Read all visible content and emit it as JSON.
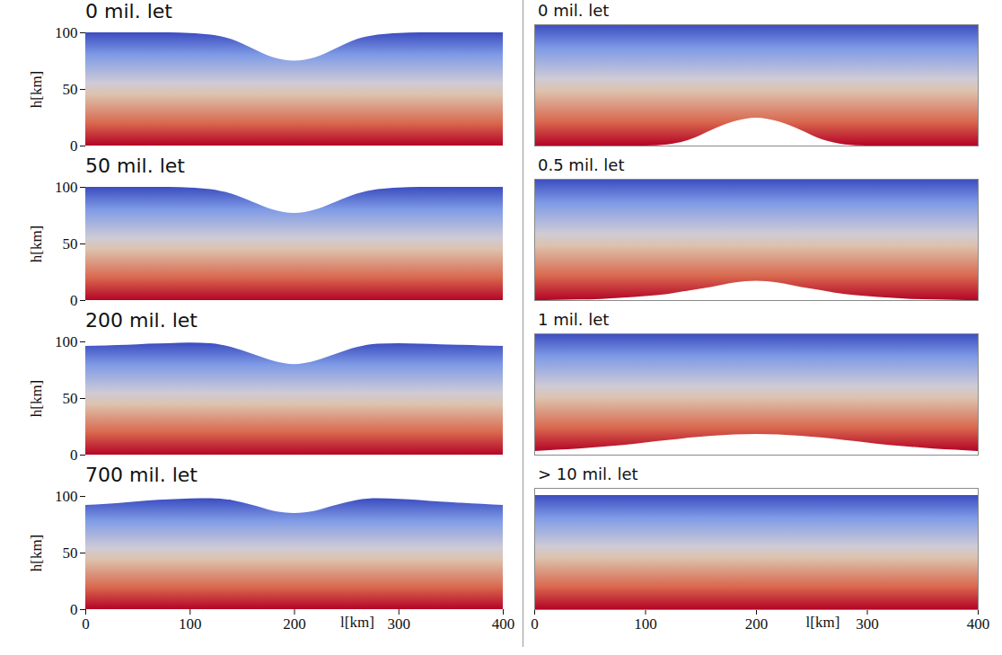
{
  "chart_data": [
    {
      "type": "area",
      "title": "0 mil. let",
      "x": [
        0,
        20,
        40,
        60,
        80,
        100,
        120,
        140,
        160,
        180,
        200,
        220,
        240,
        260,
        280,
        300,
        320,
        340,
        360,
        380,
        400
      ],
      "top": [
        100,
        100,
        100,
        100,
        100,
        99.5,
        98,
        94,
        86,
        78,
        75,
        78,
        86,
        94,
        98,
        99.5,
        100,
        100,
        100,
        100,
        100
      ],
      "bottom": [
        0,
        0,
        0,
        0,
        0,
        0,
        0,
        0,
        0,
        0,
        0,
        0,
        0,
        0,
        0,
        0,
        0,
        0,
        0,
        0,
        0
      ],
      "xlim": [
        0,
        400
      ],
      "ylim": [
        0,
        100
      ],
      "yticks": [
        0,
        50,
        100
      ],
      "ylabel": "h[km]",
      "tick_labels": "y"
    },
    {
      "type": "area",
      "title": "50 mil. let",
      "x": [
        0,
        20,
        40,
        60,
        80,
        100,
        120,
        140,
        160,
        180,
        200,
        220,
        240,
        260,
        280,
        300,
        320,
        340,
        360,
        380,
        400
      ],
      "top": [
        100,
        100,
        100,
        100,
        100,
        99.5,
        98,
        94,
        87,
        80,
        77,
        80,
        87,
        94,
        98,
        99.5,
        100,
        100,
        100,
        100,
        100
      ],
      "bottom": [
        0,
        0,
        0,
        0,
        0,
        0,
        0,
        0,
        0,
        0,
        0,
        0,
        0,
        0,
        0,
        0,
        0,
        0,
        0,
        0,
        0
      ],
      "xlim": [
        0,
        400
      ],
      "ylim": [
        0,
        100
      ],
      "yticks": [
        0,
        50,
        100
      ],
      "ylabel": "h[km]",
      "tick_labels": "y"
    },
    {
      "type": "area",
      "title": "200 mil. let",
      "x": [
        0,
        20,
        40,
        60,
        80,
        100,
        120,
        140,
        160,
        180,
        200,
        220,
        240,
        260,
        280,
        300,
        320,
        340,
        360,
        380,
        400
      ],
      "top": [
        96,
        96.5,
        97,
        98,
        98.5,
        99,
        98.5,
        95,
        89,
        83,
        80,
        83,
        89,
        95,
        98,
        98.5,
        98,
        97.5,
        97,
        96.5,
        96
      ],
      "bottom": [
        0,
        0,
        0,
        0,
        0,
        0,
        0,
        0,
        0,
        0,
        0,
        0,
        0,
        0,
        0,
        0,
        0,
        0,
        0,
        0,
        0
      ],
      "xlim": [
        0,
        400
      ],
      "ylim": [
        0,
        100
      ],
      "yticks": [
        0,
        50,
        100
      ],
      "ylabel": "h[km]",
      "tick_labels": "y"
    },
    {
      "type": "area",
      "title": "700 mil. let",
      "x": [
        0,
        20,
        40,
        60,
        80,
        100,
        120,
        140,
        160,
        180,
        200,
        220,
        240,
        260,
        280,
        300,
        320,
        340,
        360,
        380,
        400
      ],
      "top": [
        92,
        93,
        94.5,
        96,
        97,
        97.8,
        98,
        96.5,
        92,
        87,
        85,
        87,
        92,
        96.5,
        98,
        97.5,
        96.5,
        95,
        94,
        93,
        92
      ],
      "bottom": [
        0,
        0,
        0,
        0,
        0,
        0,
        0,
        0,
        0,
        0,
        0,
        0,
        0,
        0,
        0,
        0,
        0,
        0,
        0,
        0,
        0
      ],
      "xlim": [
        0,
        400
      ],
      "ylim": [
        0,
        100
      ],
      "yticks": [
        0,
        50,
        100
      ],
      "ylabel": "h[km]",
      "xticks": [
        0,
        100,
        200,
        300,
        400
      ],
      "xlabel": "l[km]",
      "tick_labels": true
    },
    {
      "type": "area",
      "title": "0 mil. let",
      "x": [
        0,
        20,
        40,
        60,
        80,
        100,
        120,
        140,
        160,
        180,
        200,
        220,
        240,
        260,
        280,
        300,
        320,
        340,
        360,
        380,
        400
      ],
      "top": [
        100,
        100,
        100,
        100,
        100,
        100,
        100,
        100,
        100,
        100,
        100,
        100,
        100,
        100,
        100,
        100,
        100,
        100,
        100,
        100,
        100
      ],
      "bottom": [
        0,
        0,
        0,
        0,
        0,
        0,
        1,
        5,
        13,
        20,
        23,
        20,
        13,
        5,
        1,
        0,
        0,
        0,
        0,
        0,
        0
      ],
      "xlim": [
        0,
        400
      ],
      "ylim": [
        0,
        100
      ],
      "tick_labels": false
    },
    {
      "type": "area",
      "title": "0.5 mil. let",
      "x": [
        0,
        20,
        40,
        60,
        80,
        100,
        120,
        140,
        160,
        180,
        200,
        220,
        240,
        260,
        280,
        300,
        320,
        340,
        360,
        380,
        400
      ],
      "top": [
        100,
        100,
        100,
        100,
        100,
        100,
        100,
        100,
        100,
        100,
        100,
        100,
        100,
        100,
        100,
        100,
        100,
        100,
        100,
        100,
        100
      ],
      "bottom": [
        0,
        0.2,
        0.5,
        1,
        2,
        3.3,
        5,
        8,
        11,
        14.5,
        16,
        14.5,
        11,
        8,
        5,
        3.3,
        2,
        1,
        0.5,
        0.2,
        0
      ],
      "xlim": [
        0,
        400
      ],
      "ylim": [
        0,
        100
      ],
      "tick_labels": false
    },
    {
      "type": "area",
      "title": "1 mil. let",
      "x": [
        0,
        20,
        40,
        60,
        80,
        100,
        120,
        140,
        160,
        180,
        200,
        220,
        240,
        260,
        280,
        300,
        320,
        340,
        360,
        380,
        400
      ],
      "top": [
        100,
        100,
        100,
        100,
        100,
        100,
        100,
        100,
        100,
        100,
        100,
        100,
        100,
        100,
        100,
        100,
        100,
        100,
        100,
        100,
        100
      ],
      "bottom": [
        3,
        4,
        5,
        6.5,
        8,
        10,
        12,
        14,
        15.5,
        16.6,
        17,
        16.6,
        15.5,
        14,
        12,
        10,
        8,
        6.5,
        5,
        4,
        3
      ],
      "xlim": [
        0,
        400
      ],
      "ylim": [
        0,
        100
      ],
      "tick_labels": false
    },
    {
      "type": "area",
      "title": "> 10 mil. let",
      "x": [
        0,
        20,
        40,
        60,
        80,
        100,
        120,
        140,
        160,
        180,
        200,
        220,
        240,
        260,
        280,
        300,
        320,
        340,
        360,
        380,
        400
      ],
      "top": [
        94,
        94,
        94,
        94,
        94,
        94,
        94,
        94,
        94,
        94,
        94,
        94,
        94,
        94,
        94,
        94,
        94,
        94,
        94,
        94,
        94
      ],
      "bottom": [
        0,
        0,
        0,
        0,
        0,
        0,
        0,
        0,
        0,
        0,
        0,
        0,
        0,
        0,
        0,
        0,
        0,
        0,
        0,
        0,
        0
      ],
      "xlim": [
        0,
        400
      ],
      "ylim": [
        0,
        100
      ],
      "xticks": [
        0,
        100,
        200,
        300,
        400
      ],
      "xlabel": "l[km]",
      "tick_labels": "x"
    }
  ]
}
